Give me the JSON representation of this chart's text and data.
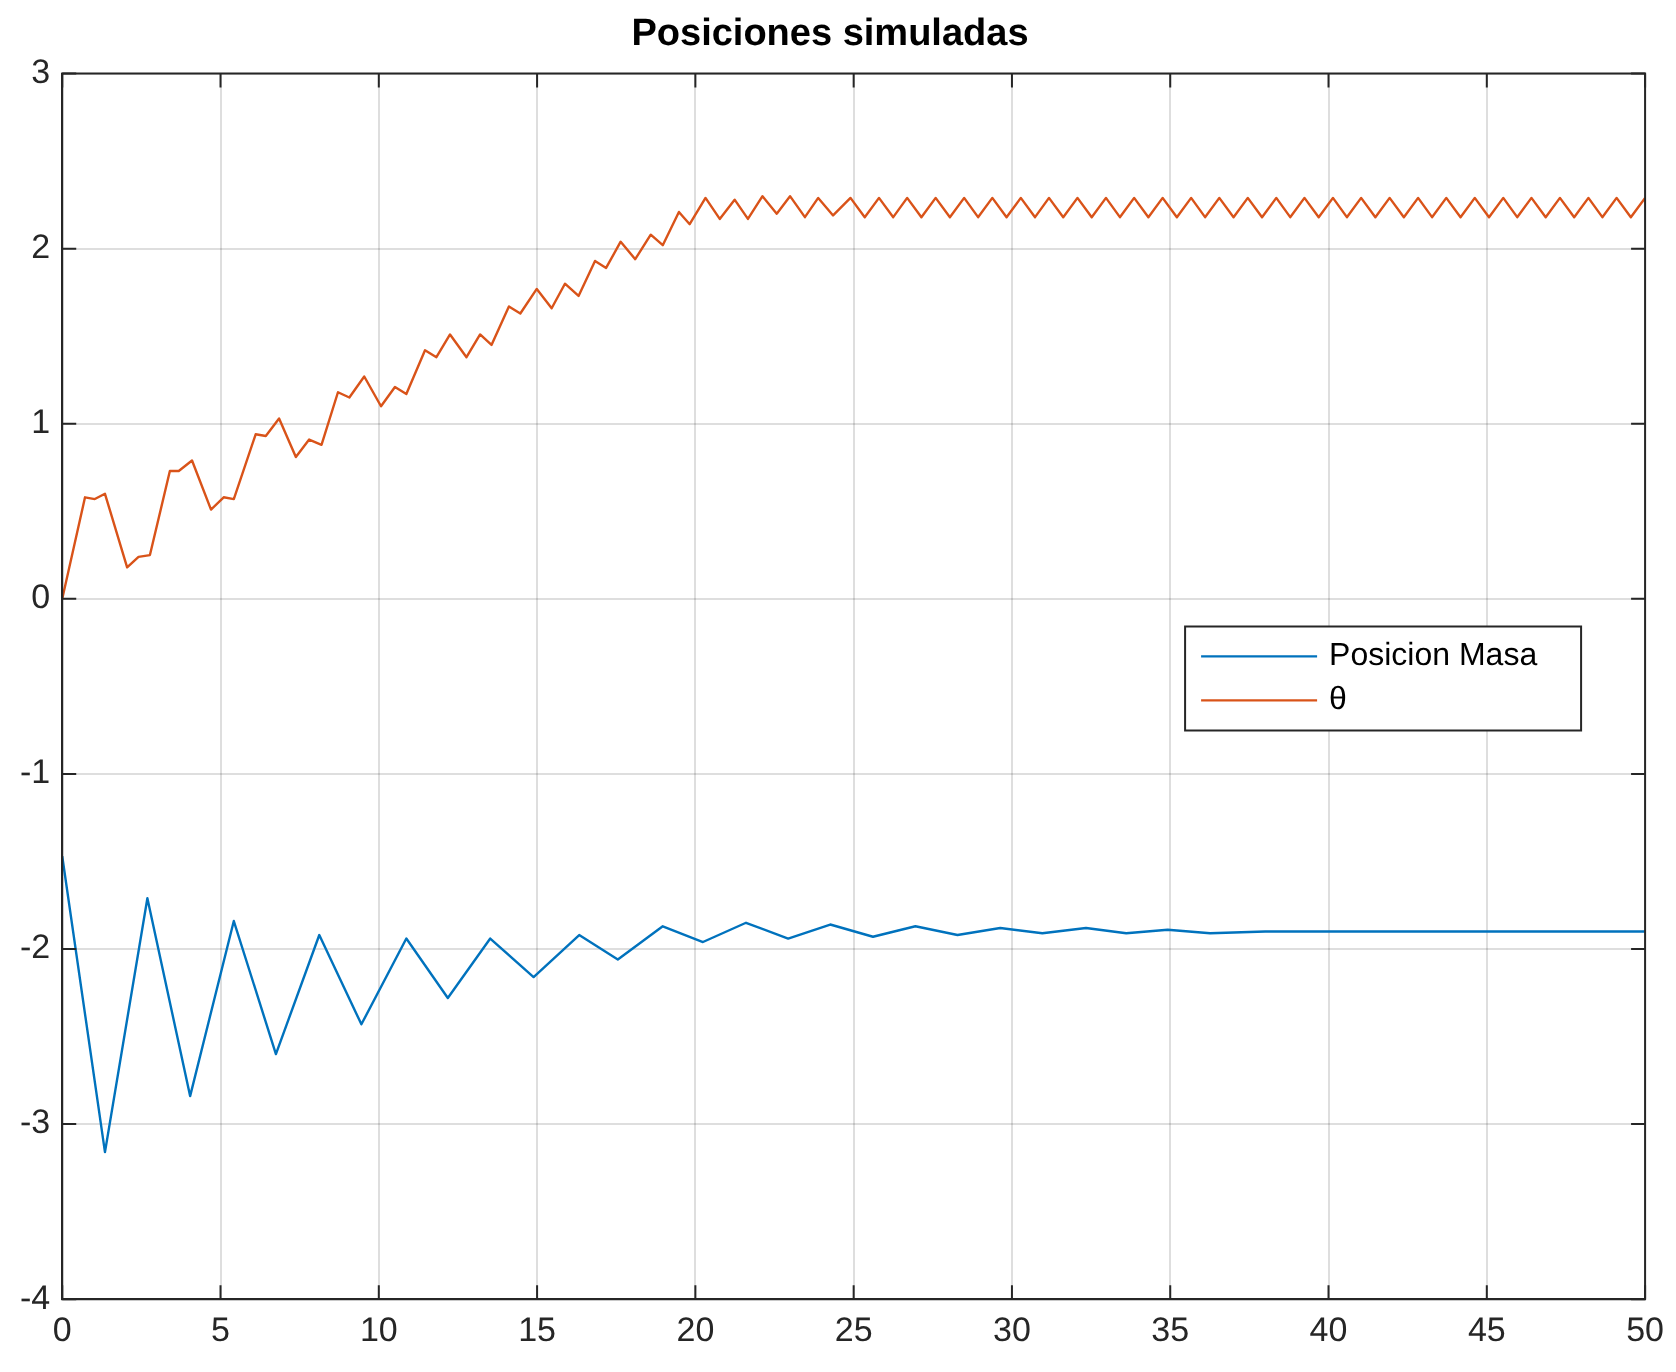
{
  "chart_data": {
    "type": "line",
    "title": "Posiciones simuladas",
    "xlim": [
      0,
      50
    ],
    "ylim": [
      -4,
      3
    ],
    "xticks": [
      0,
      5,
      10,
      15,
      20,
      25,
      30,
      35,
      40,
      45,
      50
    ],
    "yticks": [
      -4,
      -3,
      -2,
      -1,
      0,
      1,
      2,
      3
    ],
    "grid": true,
    "legend": "right",
    "marker": "none",
    "line_style": "solid",
    "series": [
      {
        "name": "Posicion Masa",
        "color": "#0072bd",
        "x": [
          0,
          1.35,
          2.69,
          4.04,
          5.42,
          6.75,
          8.12,
          9.45,
          10.87,
          12.18,
          13.52,
          14.89,
          16.33,
          17.55,
          18.97,
          20.24,
          21.6,
          22.93,
          24.26,
          25.61,
          26.95,
          28.28,
          29.63,
          30.96,
          32.34,
          33.61,
          34.92,
          36.26,
          38,
          40,
          42,
          44,
          46,
          48,
          50
        ],
        "values": [
          -1.47,
          -3.16,
          -1.71,
          -2.84,
          -1.84,
          -2.6,
          -1.92,
          -2.43,
          -1.94,
          -2.28,
          -1.94,
          -2.16,
          -1.92,
          -2.06,
          -1.87,
          -1.96,
          -1.85,
          -1.94,
          -1.86,
          -1.93,
          -1.87,
          -1.92,
          -1.88,
          -1.91,
          -1.88,
          -1.91,
          -1.89,
          -1.91,
          -1.9,
          -1.9,
          -1.9,
          -1.9,
          -1.9,
          -1.9,
          -1.9
        ]
      },
      {
        "name": "θ",
        "color": "#d95319",
        "x": [
          0,
          0.72,
          1.03,
          1.35,
          2.05,
          2.41,
          2.77,
          3.4,
          3.68,
          4.1,
          4.7,
          5.1,
          5.42,
          6.11,
          6.43,
          6.85,
          7.38,
          7.8,
          8.19,
          8.71,
          9.07,
          9.54,
          10.07,
          10.51,
          10.87,
          11.46,
          11.82,
          12.25,
          12.77,
          13.2,
          13.56,
          14.11,
          14.47,
          14.99,
          15.46,
          15.88,
          16.31,
          16.83,
          17.18,
          17.64,
          18.1,
          18.59,
          18.97,
          19.48,
          19.82,
          20.32,
          20.77,
          21.24,
          21.66,
          22.12,
          22.57,
          22.99,
          23.46,
          23.88,
          24.35,
          24.9,
          25.35,
          25.8,
          26.25,
          26.69,
          27.14,
          27.59,
          28.04,
          28.49,
          28.93,
          29.38,
          29.83,
          30.28,
          30.73,
          31.17,
          31.62,
          32.07,
          32.52,
          32.97,
          33.41,
          33.86,
          34.31,
          34.76,
          35.21,
          35.66,
          36.1,
          36.55,
          37,
          37.45,
          37.9,
          38.35,
          38.79,
          39.24,
          39.69,
          40.14,
          40.58,
          41.03,
          41.48,
          41.93,
          42.38,
          42.83,
          43.27,
          43.72,
          44.17,
          44.62,
          45.07,
          45.52,
          45.96,
          46.41,
          46.86,
          47.31,
          47.76,
          48.21,
          48.65,
          49.1,
          49.55,
          50
        ],
        "values": [
          0,
          0.58,
          0.57,
          0.6,
          0.18,
          0.24,
          0.25,
          0.73,
          0.73,
          0.79,
          0.51,
          0.58,
          0.57,
          0.94,
          0.93,
          1.03,
          0.81,
          0.91,
          0.88,
          1.18,
          1.15,
          1.27,
          1.1,
          1.21,
          1.17,
          1.42,
          1.38,
          1.51,
          1.38,
          1.51,
          1.45,
          1.67,
          1.63,
          1.77,
          1.66,
          1.8,
          1.73,
          1.93,
          1.89,
          2.04,
          1.94,
          2.08,
          2.02,
          2.21,
          2.14,
          2.29,
          2.17,
          2.28,
          2.17,
          2.3,
          2.2,
          2.3,
          2.18,
          2.29,
          2.19,
          2.29,
          2.18,
          2.29,
          2.18,
          2.29,
          2.18,
          2.29,
          2.18,
          2.29,
          2.18,
          2.29,
          2.18,
          2.29,
          2.18,
          2.29,
          2.18,
          2.29,
          2.18,
          2.29,
          2.18,
          2.29,
          2.18,
          2.29,
          2.18,
          2.29,
          2.18,
          2.29,
          2.18,
          2.29,
          2.18,
          2.29,
          2.18,
          2.29,
          2.18,
          2.29,
          2.18,
          2.29,
          2.18,
          2.29,
          2.18,
          2.29,
          2.18,
          2.29,
          2.18,
          2.29,
          2.18,
          2.29,
          2.18,
          2.29,
          2.18,
          2.29,
          2.18,
          2.29,
          2.18,
          2.29,
          2.18,
          2.29
        ]
      }
    ]
  }
}
